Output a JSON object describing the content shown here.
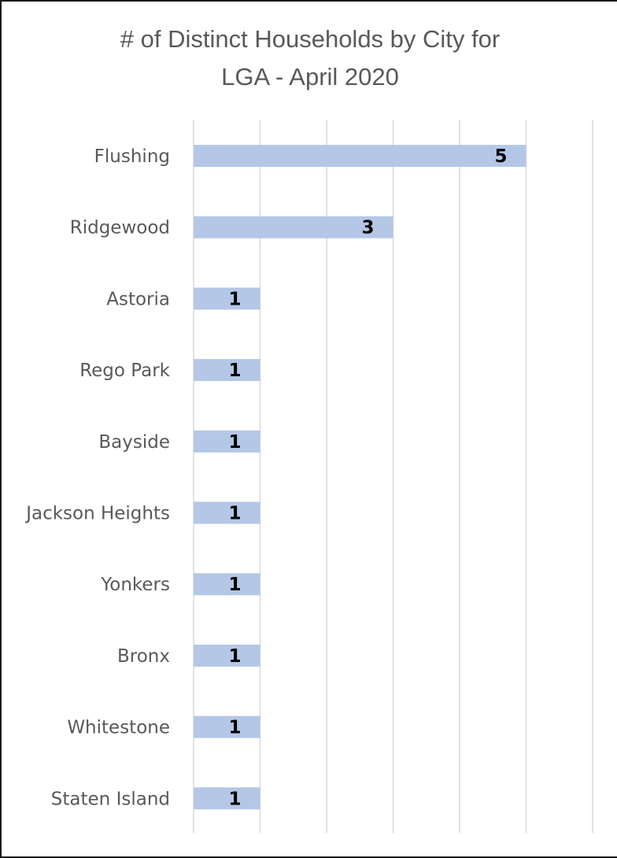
{
  "chart_data": {
    "type": "bar",
    "orientation": "horizontal",
    "title_lines": [
      "# of Distinct Households by City for",
      "LGA - April 2020"
    ],
    "categories": [
      "Flushing",
      "Ridgewood",
      "Astoria",
      "Rego Park",
      "Bayside",
      "Jackson Heights",
      "Yonkers",
      "Bronx",
      "Whitestone",
      "Staten Island"
    ],
    "values": [
      5,
      3,
      1,
      1,
      1,
      1,
      1,
      1,
      1,
      1
    ],
    "xlim": [
      0,
      6
    ],
    "gridlines": true,
    "data_labels": true,
    "bar_color": "#b4c7e7",
    "gridline_color": "#d9d9d9"
  }
}
